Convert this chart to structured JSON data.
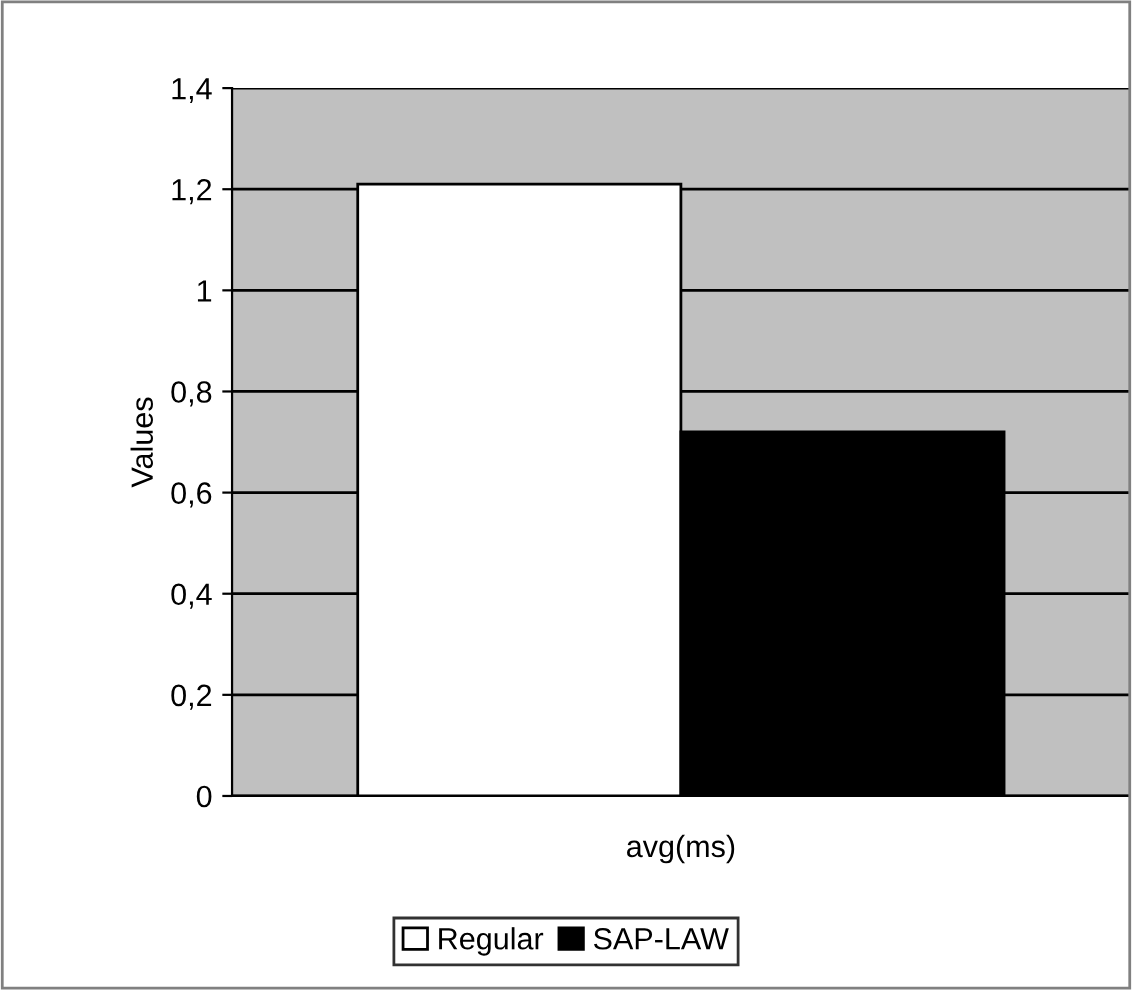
{
  "chart_data": {
    "type": "bar",
    "ylabel": "Values",
    "categories": [
      "avg(ms)"
    ],
    "series": [
      {
        "name": "Regular",
        "color": "#ffffff",
        "values": [
          1.21
        ]
      },
      {
        "name": "SAP-LAW",
        "color": "#000000",
        "values": [
          0.72
        ]
      }
    ],
    "ylim": [
      0,
      1.4
    ],
    "yticks": [
      0,
      {
        "value": 0.2,
        "label": "0,2"
      },
      {
        "value": 0.4,
        "label": "0,4"
      },
      {
        "value": 0.6,
        "label": "0,6"
      },
      {
        "value": 0.8,
        "label": "0,8"
      },
      1,
      {
        "value": 1.2,
        "label": "1,2"
      },
      {
        "value": 1.4,
        "label": "1,4"
      }
    ],
    "grid": "y",
    "legend": "bottom"
  }
}
